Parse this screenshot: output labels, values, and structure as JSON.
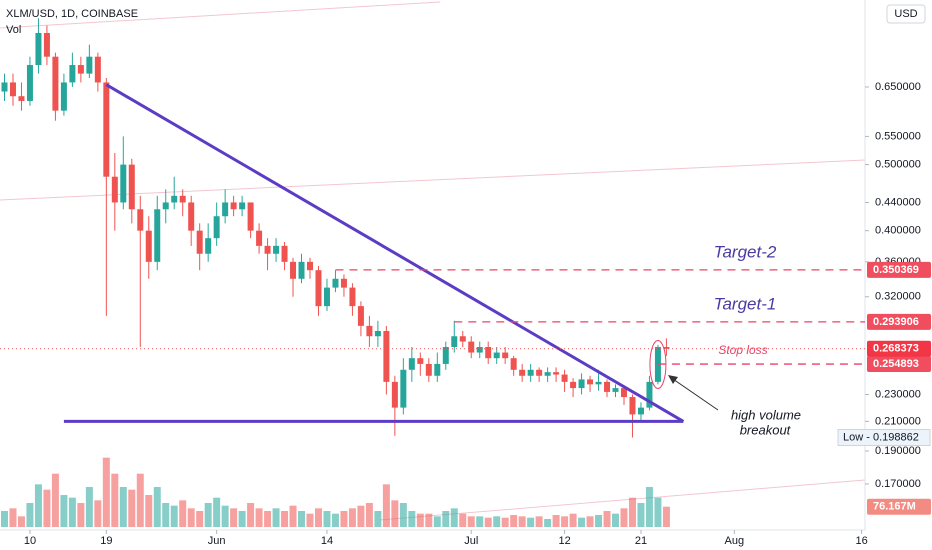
{
  "chart_data": {
    "type": "candlestick",
    "title": "XLM/USD, 1D, COINBASE",
    "volume_title": "Vol",
    "currency": "USD",
    "up_color": "#26a69a",
    "down_color": "#ef5350",
    "log_scale": true,
    "ylim": [
      0.1455,
      0.872
    ],
    "yticks": [
      {
        "value": 0.65,
        "label": "0.650000"
      },
      {
        "value": 0.55,
        "label": "0.550000"
      },
      {
        "value": 0.5,
        "label": "0.500000"
      },
      {
        "value": 0.44,
        "label": "0.440000"
      },
      {
        "value": 0.4,
        "label": "0.400000"
      },
      {
        "value": 0.36,
        "label": "0.360000"
      },
      {
        "value": 0.32,
        "label": "0.320000"
      },
      {
        "value": 0.23,
        "label": "0.230000"
      },
      {
        "value": 0.21,
        "label": "0.210000"
      },
      {
        "value": 0.19,
        "label": "0.190000"
      },
      {
        "value": 0.17,
        "label": "0.170000"
      }
    ],
    "xlim": [
      -0.53,
      101.4
    ],
    "xticks": [
      {
        "value": 3,
        "label": "10"
      },
      {
        "value": 12,
        "label": "19"
      },
      {
        "value": 25,
        "label": "Jun"
      },
      {
        "value": 38,
        "label": "14"
      },
      {
        "value": 55,
        "label": "Jul"
      },
      {
        "value": 66,
        "label": "12"
      },
      {
        "value": 75,
        "label": "21"
      },
      {
        "value": 86,
        "label": "Aug"
      },
      {
        "value": 101,
        "label": "16"
      }
    ],
    "open": [
      0.64,
      0.66,
      0.63,
      0.62,
      0.7,
      0.78,
      0.72,
      0.6,
      0.66,
      0.7,
      0.68,
      0.72,
      0.66,
      0.48,
      0.44,
      0.5,
      0.43,
      0.4,
      0.36,
      0.43,
      0.44,
      0.45,
      0.44,
      0.4,
      0.37,
      0.39,
      0.42,
      0.44,
      0.43,
      0.44,
      0.4,
      0.38,
      0.37,
      0.38,
      0.36,
      0.34,
      0.36,
      0.35,
      0.31,
      0.33,
      0.34,
      0.33,
      0.31,
      0.29,
      0.28,
      0.285,
      0.24,
      0.22,
      0.25,
      0.26,
      0.255,
      0.245,
      0.255,
      0.27,
      0.28,
      0.275,
      0.265,
      0.27,
      0.26,
      0.265,
      0.26,
      0.25,
      0.245,
      0.25,
      0.245,
      0.248,
      0.246,
      0.24,
      0.235,
      0.242,
      0.238,
      0.24,
      0.232,
      0.235,
      0.228,
      0.215,
      0.22,
      0.24,
      0.27
    ],
    "high": [
      0.68,
      0.68,
      0.66,
      0.72,
      0.82,
      0.8,
      0.73,
      0.68,
      0.73,
      0.72,
      0.75,
      0.73,
      0.67,
      0.52,
      0.55,
      0.51,
      0.45,
      0.42,
      0.45,
      0.46,
      0.48,
      0.46,
      0.45,
      0.41,
      0.41,
      0.44,
      0.46,
      0.45,
      0.45,
      0.44,
      0.41,
      0.39,
      0.39,
      0.385,
      0.365,
      0.37,
      0.365,
      0.355,
      0.34,
      0.35,
      0.345,
      0.335,
      0.315,
      0.3,
      0.295,
      0.29,
      0.245,
      0.26,
      0.27,
      0.265,
      0.26,
      0.265,
      0.275,
      0.295,
      0.285,
      0.28,
      0.275,
      0.275,
      0.27,
      0.27,
      0.262,
      0.255,
      0.255,
      0.252,
      0.252,
      0.252,
      0.25,
      0.243,
      0.247,
      0.245,
      0.25,
      0.242,
      0.238,
      0.237,
      0.23,
      0.224,
      0.245,
      0.272,
      0.278
    ],
    "low": [
      0.62,
      0.61,
      0.6,
      0.61,
      0.68,
      0.7,
      0.58,
      0.59,
      0.65,
      0.66,
      0.67,
      0.64,
      0.3,
      0.4,
      0.43,
      0.41,
      0.27,
      0.34,
      0.35,
      0.41,
      0.43,
      0.42,
      0.38,
      0.35,
      0.36,
      0.38,
      0.41,
      0.42,
      0.42,
      0.39,
      0.37,
      0.35,
      0.36,
      0.35,
      0.32,
      0.335,
      0.34,
      0.3,
      0.305,
      0.325,
      0.32,
      0.3,
      0.28,
      0.27,
      0.27,
      0.23,
      0.2,
      0.215,
      0.24,
      0.245,
      0.24,
      0.24,
      0.25,
      0.265,
      0.27,
      0.26,
      0.26,
      0.255,
      0.255,
      0.255,
      0.245,
      0.24,
      0.24,
      0.24,
      0.24,
      0.24,
      0.232,
      0.228,
      0.23,
      0.232,
      0.233,
      0.228,
      0.228,
      0.222,
      0.198862,
      0.21,
      0.218,
      0.238,
      0.262
    ],
    "close": [
      0.66,
      0.63,
      0.62,
      0.7,
      0.78,
      0.72,
      0.6,
      0.66,
      0.7,
      0.68,
      0.72,
      0.66,
      0.48,
      0.44,
      0.5,
      0.43,
      0.4,
      0.36,
      0.43,
      0.44,
      0.45,
      0.44,
      0.4,
      0.37,
      0.39,
      0.42,
      0.44,
      0.43,
      0.44,
      0.4,
      0.38,
      0.37,
      0.38,
      0.36,
      0.34,
      0.36,
      0.35,
      0.31,
      0.33,
      0.34,
      0.33,
      0.31,
      0.29,
      0.28,
      0.285,
      0.24,
      0.22,
      0.25,
      0.26,
      0.255,
      0.245,
      0.255,
      0.27,
      0.28,
      0.275,
      0.265,
      0.27,
      0.26,
      0.265,
      0.26,
      0.25,
      0.245,
      0.25,
      0.245,
      0.248,
      0.246,
      0.24,
      0.235,
      0.242,
      0.238,
      0.24,
      0.232,
      0.235,
      0.228,
      0.215,
      0.22,
      0.24,
      0.27,
      0.268373
    ],
    "volume": [
      60,
      70,
      40,
      90,
      160,
      140,
      200,
      120,
      110,
      90,
      150,
      100,
      260,
      200,
      150,
      140,
      200,
      120,
      150,
      90,
      80,
      100,
      70,
      60,
      90,
      110,
      80,
      70,
      60,
      90,
      70,
      60,
      70,
      60,
      80,
      60,
      50,
      70,
      60,
      50,
      60,
      70,
      80,
      90,
      60,
      160,
      100,
      90,
      60,
      50,
      50,
      40,
      60,
      70,
      50,
      40,
      40,
      35,
      40,
      35,
      45,
      40,
      35,
      40,
      30,
      45,
      40,
      50,
      35,
      40,
      45,
      60,
      50,
      70,
      110,
      90,
      150,
      110,
      76.167
    ],
    "volume_ylim": [
      0,
      900
    ],
    "last_volume_label": "76.167M",
    "low_label": "Low - 0.198862",
    "levels": [
      {
        "name": "Target-2",
        "value": 0.350369
      },
      {
        "name": "Target-1",
        "value": 0.293906
      },
      {
        "name": "Stop loss",
        "value": 0.254893
      }
    ],
    "trendlines": [
      {
        "points": [
          [
            12,
            0.655
          ],
          [
            80,
            0.21
          ]
        ]
      },
      {
        "points": [
          [
            7,
            0.21
          ],
          [
            80,
            0.21
          ]
        ]
      }
    ],
    "annotation": [
      "high volume",
      "breakout"
    ]
  }
}
